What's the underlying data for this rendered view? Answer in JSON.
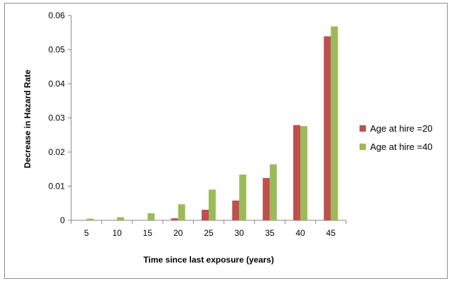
{
  "chart_data": {
    "type": "bar",
    "categories": [
      "5",
      "10",
      "15",
      "20",
      "25",
      "30",
      "35",
      "40",
      "45"
    ],
    "series": [
      {
        "name": "Age at hire =20",
        "color": "#c0504d",
        "values": [
          0,
          0,
          0,
          0.0006,
          0.0031,
          0.0058,
          0.0124,
          0.0279,
          0.0539
        ]
      },
      {
        "name": "Age at hire =40",
        "color": "#9bbb59",
        "values": [
          0.0005,
          0.0009,
          0.0021,
          0.0047,
          0.009,
          0.0134,
          0.0164,
          0.0276,
          0.0568
        ]
      }
    ],
    "xlabel": "Time since last exposure (years)",
    "ylabel": "Decrease in Hazard Rate",
    "ylim": [
      0,
      0.06
    ],
    "yticks": [
      "0",
      "0.01",
      "0.02",
      "0.03",
      "0.04",
      "0.05",
      "0.06"
    ],
    "grid": false,
    "legend_position": "right"
  }
}
